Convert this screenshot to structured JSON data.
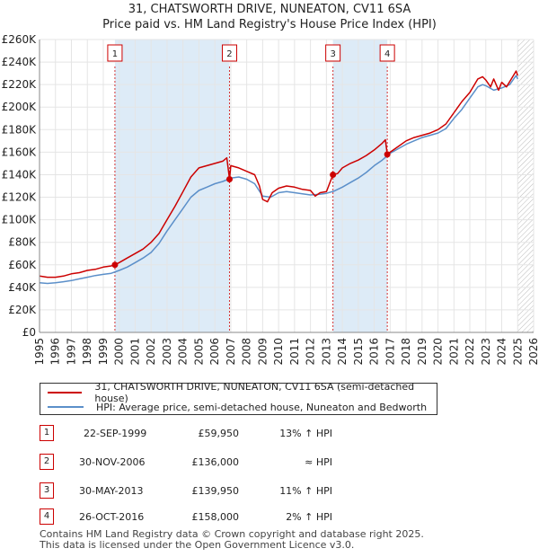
{
  "title_line1": "31, CHATSWORTH DRIVE, NUNEATON, CV11 6SA",
  "title_line2": "Price paid vs. HM Land Registry's House Price Index (HPI)",
  "colors": {
    "property": "#cc0000",
    "hpi": "#5b8fc9",
    "marker": "#cc0000",
    "grid": "#e5e5e5",
    "shade": "#ddebf7"
  },
  "chart_data": {
    "type": "line",
    "ylim": [
      0,
      260000
    ],
    "xlim": [
      1995,
      2026
    ],
    "y_ticks": [
      0,
      20000,
      40000,
      60000,
      80000,
      100000,
      120000,
      140000,
      160000,
      180000,
      200000,
      220000,
      240000,
      260000
    ],
    "y_tick_labels": [
      "£0",
      "£20K",
      "£40K",
      "£60K",
      "£80K",
      "£100K",
      "£120K",
      "£140K",
      "£160K",
      "£180K",
      "£200K",
      "£220K",
      "£240K",
      "£260K"
    ],
    "x_ticks": [
      1995,
      1996,
      1997,
      1998,
      1999,
      2000,
      2001,
      2002,
      2003,
      2004,
      2005,
      2006,
      2007,
      2008,
      2009,
      2010,
      2011,
      2012,
      2013,
      2014,
      2015,
      2016,
      2017,
      2018,
      2019,
      2020,
      2021,
      2022,
      2023,
      2024,
      2025,
      2026
    ],
    "x_tick_labels": [
      "1995",
      "1996",
      "1997",
      "1998",
      "1999",
      "2000",
      "2001",
      "2002",
      "2003",
      "2004",
      "2005",
      "2006",
      "2007",
      "2008",
      "2009",
      "2010",
      "2011",
      "2012",
      "2013",
      "2014",
      "2015",
      "2016",
      "2017",
      "2018",
      "2019",
      "2020",
      "2021",
      "2022",
      "2023",
      "2024",
      "2025",
      "2026"
    ],
    "future_hatch_start": 2025.0,
    "series": [
      {
        "name": "31, CHATSWORTH DRIVE, NUNEATON, CV11 6SA (semi-detached house)",
        "color": "#cc0000",
        "points": [
          [
            1995.0,
            50000
          ],
          [
            1995.5,
            49000
          ],
          [
            1996.0,
            49000
          ],
          [
            1996.5,
            50000
          ],
          [
            1997.0,
            52000
          ],
          [
            1997.5,
            53000
          ],
          [
            1998.0,
            55000
          ],
          [
            1998.5,
            56000
          ],
          [
            1999.0,
            58000
          ],
          [
            1999.5,
            59000
          ],
          [
            1999.73,
            59950
          ],
          [
            2000.0,
            62000
          ],
          [
            2000.5,
            66000
          ],
          [
            2001.0,
            70000
          ],
          [
            2001.5,
            74000
          ],
          [
            2002.0,
            80000
          ],
          [
            2002.5,
            88000
          ],
          [
            2003.0,
            100000
          ],
          [
            2003.5,
            112000
          ],
          [
            2004.0,
            125000
          ],
          [
            2004.5,
            138000
          ],
          [
            2005.0,
            146000
          ],
          [
            2005.5,
            148000
          ],
          [
            2006.0,
            150000
          ],
          [
            2006.5,
            152000
          ],
          [
            2006.75,
            155000
          ],
          [
            2006.92,
            136000
          ],
          [
            2007.0,
            148000
          ],
          [
            2007.5,
            146000
          ],
          [
            2008.0,
            143000
          ],
          [
            2008.5,
            140000
          ],
          [
            2008.8,
            130000
          ],
          [
            2009.0,
            118000
          ],
          [
            2009.3,
            116000
          ],
          [
            2009.6,
            124000
          ],
          [
            2010.0,
            128000
          ],
          [
            2010.5,
            130000
          ],
          [
            2011.0,
            129000
          ],
          [
            2011.5,
            127000
          ],
          [
            2012.0,
            126000
          ],
          [
            2012.3,
            121000
          ],
          [
            2012.6,
            124000
          ],
          [
            2013.0,
            125000
          ],
          [
            2013.41,
            139950
          ],
          [
            2013.7,
            141000
          ],
          [
            2014.0,
            146000
          ],
          [
            2014.5,
            150000
          ],
          [
            2015.0,
            153000
          ],
          [
            2015.5,
            157000
          ],
          [
            2016.0,
            162000
          ],
          [
            2016.5,
            168000
          ],
          [
            2016.7,
            171000
          ],
          [
            2016.82,
            158000
          ],
          [
            2017.0,
            160000
          ],
          [
            2017.5,
            165000
          ],
          [
            2018.0,
            170000
          ],
          [
            2018.5,
            173000
          ],
          [
            2019.0,
            175000
          ],
          [
            2019.5,
            177000
          ],
          [
            2020.0,
            180000
          ],
          [
            2020.5,
            185000
          ],
          [
            2021.0,
            195000
          ],
          [
            2021.5,
            205000
          ],
          [
            2022.0,
            213000
          ],
          [
            2022.5,
            225000
          ],
          [
            2022.8,
            227000
          ],
          [
            2023.0,
            224000
          ],
          [
            2023.3,
            218000
          ],
          [
            2023.5,
            225000
          ],
          [
            2023.8,
            215000
          ],
          [
            2024.0,
            222000
          ],
          [
            2024.3,
            218000
          ],
          [
            2024.6,
            225000
          ],
          [
            2024.9,
            232000
          ],
          [
            2025.0,
            228000
          ]
        ]
      },
      {
        "name": "HPI: Average price, semi-detached house, Nuneaton and Bedworth",
        "color": "#5b8fc9",
        "points": [
          [
            1995.0,
            44000
          ],
          [
            1995.5,
            43500
          ],
          [
            1996.0,
            44000
          ],
          [
            1996.5,
            45000
          ],
          [
            1997.0,
            46000
          ],
          [
            1997.5,
            47500
          ],
          [
            1998.0,
            49000
          ],
          [
            1998.5,
            50500
          ],
          [
            1999.0,
            51500
          ],
          [
            1999.5,
            52500
          ],
          [
            2000.0,
            55000
          ],
          [
            2000.5,
            58000
          ],
          [
            2001.0,
            62000
          ],
          [
            2001.5,
            66000
          ],
          [
            2002.0,
            71000
          ],
          [
            2002.5,
            79000
          ],
          [
            2003.0,
            90000
          ],
          [
            2003.5,
            100000
          ],
          [
            2004.0,
            110000
          ],
          [
            2004.5,
            120000
          ],
          [
            2005.0,
            126000
          ],
          [
            2005.5,
            129000
          ],
          [
            2006.0,
            132000
          ],
          [
            2006.5,
            134000
          ],
          [
            2007.0,
            137000
          ],
          [
            2007.5,
            138000
          ],
          [
            2008.0,
            136000
          ],
          [
            2008.5,
            132000
          ],
          [
            2009.0,
            121000
          ],
          [
            2009.5,
            120000
          ],
          [
            2010.0,
            124000
          ],
          [
            2010.5,
            125000
          ],
          [
            2011.0,
            124000
          ],
          [
            2011.5,
            123000
          ],
          [
            2012.0,
            122000
          ],
          [
            2012.5,
            122500
          ],
          [
            2013.0,
            123500
          ],
          [
            2013.5,
            125500
          ],
          [
            2014.0,
            129000
          ],
          [
            2014.5,
            133000
          ],
          [
            2015.0,
            137000
          ],
          [
            2015.5,
            142000
          ],
          [
            2016.0,
            148000
          ],
          [
            2016.5,
            153000
          ],
          [
            2017.0,
            159000
          ],
          [
            2017.5,
            163000
          ],
          [
            2018.0,
            167000
          ],
          [
            2018.5,
            170000
          ],
          [
            2019.0,
            173000
          ],
          [
            2019.5,
            175000
          ],
          [
            2020.0,
            177000
          ],
          [
            2020.5,
            181000
          ],
          [
            2021.0,
            190000
          ],
          [
            2021.5,
            198000
          ],
          [
            2022.0,
            208000
          ],
          [
            2022.5,
            218000
          ],
          [
            2022.8,
            220000
          ],
          [
            2023.0,
            219000
          ],
          [
            2023.5,
            215000
          ],
          [
            2024.0,
            217000
          ],
          [
            2024.5,
            220000
          ],
          [
            2024.9,
            228000
          ],
          [
            2025.0,
            225000
          ]
        ]
      }
    ],
    "sales": [
      {
        "num": "1",
        "x": 1999.73,
        "price": 59950,
        "date": "22-SEP-1999",
        "price_label": "£59,950",
        "hpi": "13% ↑ HPI"
      },
      {
        "num": "2",
        "x": 2006.92,
        "price": 136000,
        "date": "30-NOV-2006",
        "price_label": "£136,000",
        "hpi": "≈ HPI"
      },
      {
        "num": "3",
        "x": 2013.41,
        "price": 139950,
        "date": "30-MAY-2013",
        "price_label": "£139,950",
        "hpi": "11% ↑ HPI"
      },
      {
        "num": "4",
        "x": 2016.82,
        "price": 158000,
        "date": "26-OCT-2016",
        "price_label": "£158,000",
        "hpi": "2% ↑ HPI"
      }
    ]
  },
  "legend": {
    "property": "31, CHATSWORTH DRIVE, NUNEATON, CV11 6SA (semi-detached house)",
    "hpi": "HPI: Average price, semi-detached house, Nuneaton and Bedworth"
  },
  "footer_line1": "Contains HM Land Registry data © Crown copyright and database right 2025.",
  "footer_line2": "This data is licensed under the Open Government Licence v3.0."
}
